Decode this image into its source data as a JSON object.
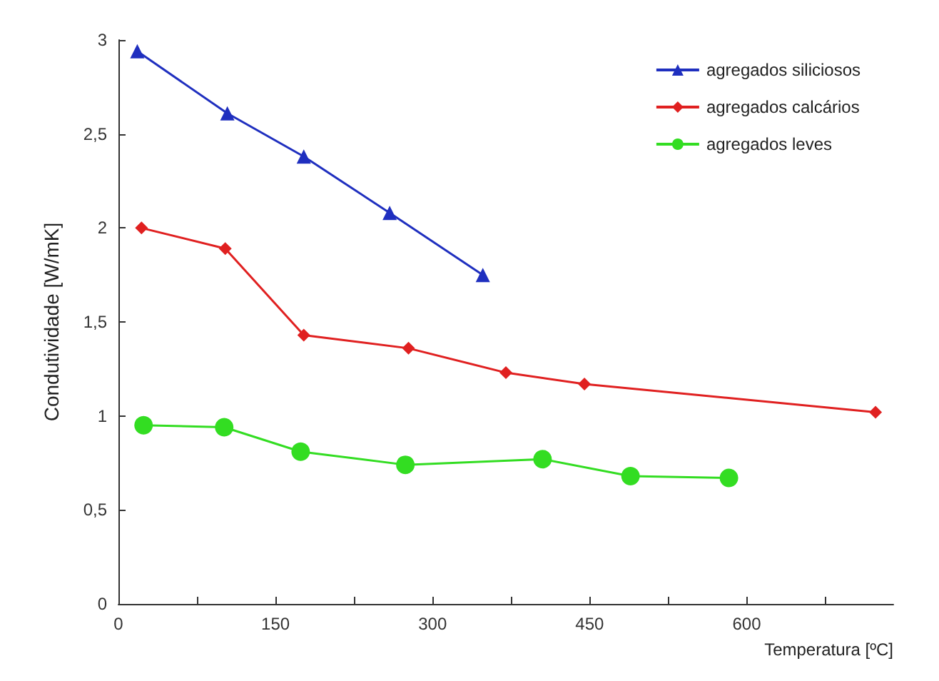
{
  "chart_data": {
    "type": "line",
    "xlabel": "Temperatura [ºC]",
    "ylabel": "Condutividade [W/mK]",
    "xlim": [
      0,
      740
    ],
    "ylim": [
      0,
      3
    ],
    "xticks": [
      0,
      {
        "value": 75,
        "label": null
      },
      150,
      {
        "value": 225,
        "label": null
      },
      300,
      {
        "value": 375,
        "label": null
      },
      450,
      {
        "value": 525,
        "label": null
      },
      600,
      {
        "value": 675,
        "label": null
      }
    ],
    "yticks": [
      0,
      {
        "value": 0.5,
        "label": "0,5"
      },
      1,
      {
        "value": 1.5,
        "label": "1,5"
      },
      2,
      {
        "value": 2.5,
        "label": "2,5"
      },
      3
    ],
    "grid": false,
    "legend": "top right",
    "line_style": "solid",
    "series": [
      {
        "name": "agregados siliciosos",
        "color": "#1f2fbf",
        "marker": "triangle",
        "x": [
          18,
          104,
          177,
          259,
          348
        ],
        "values": [
          2.94,
          2.61,
          2.38,
          2.08,
          1.75
        ]
      },
      {
        "name": "agregados calcários",
        "color": "#e02020",
        "marker": "diamond",
        "x": [
          22,
          102,
          177,
          277,
          370,
          445,
          723
        ],
        "values": [
          2.0,
          1.89,
          1.43,
          1.36,
          1.23,
          1.17,
          1.02
        ]
      },
      {
        "name": "agregados leves",
        "color": "#33dd22",
        "marker": "circle",
        "x": [
          24,
          101,
          174,
          274,
          405,
          489,
          583
        ],
        "values": [
          0.95,
          0.94,
          0.81,
          0.74,
          0.77,
          0.68,
          0.67
        ]
      }
    ]
  }
}
